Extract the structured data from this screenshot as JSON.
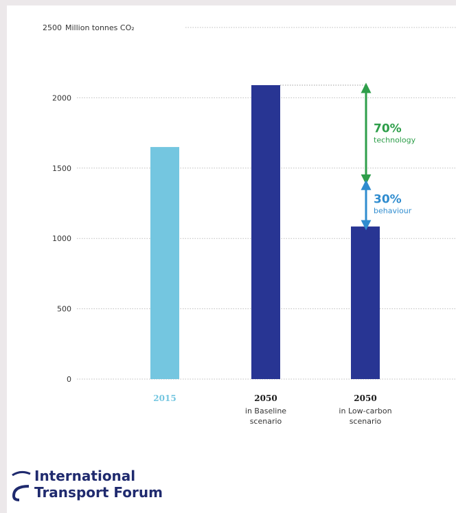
{
  "chart_data": {
    "type": "bar",
    "ylabel": "Million tonnes CO₂",
    "ylim": [
      0,
      2500
    ],
    "y_ticks": [
      0,
      500,
      1000,
      1500,
      2000,
      2500
    ],
    "grid": true,
    "categories": [
      {
        "year": "2015",
        "subtitle": []
      },
      {
        "year": "2050",
        "subtitle": [
          "in Baseline",
          "scenario"
        ]
      },
      {
        "year": "2050",
        "subtitle": [
          "in Low-carbon",
          "scenario"
        ]
      }
    ],
    "values": [
      1650,
      2090,
      1085
    ],
    "bar_colors": [
      "#74c6e0",
      "#283593",
      "#283593"
    ],
    "category_label_colors": [
      "#74c6e0",
      "#1a1a1a",
      "#1a1a1a"
    ],
    "annotations": [
      {
        "percent": "70%",
        "label": "technology",
        "from": 1400,
        "to": 2090,
        "color": "#2e9e4a"
      },
      {
        "percent": "30%",
        "label": "behaviour",
        "from": 1085,
        "to": 1400,
        "color": "#2f8ccf"
      }
    ]
  },
  "logo": {
    "line1": "International",
    "line2": "Transport Forum",
    "color": "#1f2a6e"
  }
}
